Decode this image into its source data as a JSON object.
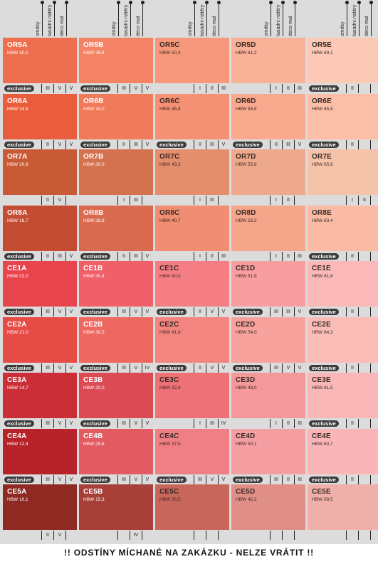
{
  "headers": [
    "omítky",
    "fasádní nátěry",
    "deco mal"
  ],
  "exclusive_label": "exclusive",
  "footer_text": "!! ODSTÍNY MÍCHANÉ NA ZAKÁZKU  - NELZE VRÁTIT !!",
  "rows": [
    {
      "cells": [
        {
          "code": "OR5A",
          "hbw": "HBW 30,1",
          "color": "#ee6f4f",
          "text_color": "#ffffff",
          "exclusive": true,
          "marks": [
            "III",
            "V",
            "V"
          ]
        },
        {
          "code": "OR5B",
          "hbw": "HBW 39,6",
          "color": "#f38364",
          "text_color": "#ffffff",
          "exclusive": true,
          "marks": [
            "III",
            "V",
            "V"
          ]
        },
        {
          "code": "OR5C",
          "hbw": "HBW 50,4",
          "color": "#f6987c",
          "text_color": "#3a2a24",
          "exclusive": false,
          "marks": [
            "I",
            "II",
            "III"
          ]
        },
        {
          "code": "OR5D",
          "hbw": "HBW 61,2",
          "color": "#f9b198",
          "text_color": "#3a2a24",
          "exclusive": false,
          "marks": [
            "I",
            "II",
            "III"
          ]
        },
        {
          "code": "OR5E",
          "hbw": "HBW 69,1",
          "color": "#fbc9b6",
          "text_color": "#3a2a24",
          "exclusive": true,
          "marks": [
            "II",
            "",
            ""
          ]
        }
      ]
    },
    {
      "cells": [
        {
          "code": "OR6A",
          "hbw": "HBW 24,5",
          "color": "#e95d3c",
          "text_color": "#ffffff",
          "exclusive": true,
          "marks": [
            "II",
            "V",
            "V"
          ]
        },
        {
          "code": "OR6B",
          "hbw": "HBW 34,0",
          "color": "#f07a5a",
          "text_color": "#ffffff",
          "exclusive": true,
          "marks": [
            "II",
            "III",
            "V"
          ]
        },
        {
          "code": "OR6C",
          "hbw": "HBW 45,8",
          "color": "#f49073",
          "text_color": "#3a2a24",
          "exclusive": true,
          "marks": [
            "II",
            "III",
            "V"
          ]
        },
        {
          "code": "OR6D",
          "hbw": "HBW 56,8",
          "color": "#f8a98e",
          "text_color": "#3a2a24",
          "exclusive": true,
          "marks": [
            "II",
            "III",
            "V"
          ]
        },
        {
          "code": "OR6E",
          "hbw": "HBW 65,8",
          "color": "#fbbfa8",
          "text_color": "#3a2a24",
          "exclusive": true,
          "marks": [
            "II",
            "",
            ""
          ]
        }
      ]
    },
    {
      "cells": [
        {
          "code": "OR7A",
          "hbw": "HBW 20,8",
          "color": "#c85a36",
          "text_color": "#ffffff",
          "exclusive": false,
          "marks": [
            "II",
            "V",
            ""
          ]
        },
        {
          "code": "OR7B",
          "hbw": "HBW 30,0",
          "color": "#d4714e",
          "text_color": "#ffffff",
          "exclusive": false,
          "marks": [
            "I",
            "III",
            ""
          ]
        },
        {
          "code": "OR7C",
          "hbw": "HBW 43,2",
          "color": "#e48e6e",
          "text_color": "#3a2a24",
          "exclusive": false,
          "marks": [
            "I",
            "III",
            ""
          ]
        },
        {
          "code": "OR7D",
          "hbw": "HBW 55,8",
          "color": "#eea98c",
          "text_color": "#3a2a24",
          "exclusive": false,
          "marks": [
            "I",
            "II",
            ""
          ]
        },
        {
          "code": "OR7E",
          "hbw": "HBW 65,6",
          "color": "#f5c2aa",
          "text_color": "#3a2a24",
          "exclusive": false,
          "marks": [
            "I",
            "II",
            ""
          ]
        }
      ]
    },
    {
      "cells": [
        {
          "code": "OR8A",
          "hbw": "HBW 18,7",
          "color": "#c44c32",
          "text_color": "#ffffff",
          "exclusive": true,
          "marks": [
            "II",
            "III",
            "V"
          ]
        },
        {
          "code": "OR8B",
          "hbw": "HBW 28,8",
          "color": "#d96a50",
          "text_color": "#ffffff",
          "exclusive": true,
          "marks": [
            "II",
            "III",
            "V"
          ]
        },
        {
          "code": "OR8C",
          "hbw": "HBW 40,7",
          "color": "#ef8e72",
          "text_color": "#3a2a24",
          "exclusive": false,
          "marks": [
            "I",
            "II",
            "III"
          ]
        },
        {
          "code": "OR8D",
          "hbw": "HBW 53,2",
          "color": "#f5a589",
          "text_color": "#3a2a24",
          "exclusive": false,
          "marks": [
            "I",
            "II",
            "III"
          ]
        },
        {
          "code": "OR8E",
          "hbw": "HBW 63,4",
          "color": "#f9bba3",
          "text_color": "#3a2a24",
          "exclusive": true,
          "marks": [
            "II",
            "",
            ""
          ]
        }
      ]
    },
    {
      "cells": [
        {
          "code": "CE1A",
          "hbw": "HBW 22,0",
          "color": "#e8444e",
          "text_color": "#ffffff",
          "exclusive": true,
          "marks": [
            "III",
            "V",
            "V"
          ]
        },
        {
          "code": "CE1B",
          "hbw": "HBW 30,4",
          "color": "#ef6068",
          "text_color": "#ffffff",
          "exclusive": true,
          "marks": [
            "III",
            "V",
            "V"
          ]
        },
        {
          "code": "CE1C",
          "hbw": "HBW 40,0",
          "color": "#f47e83",
          "text_color": "#3a2a24",
          "exclusive": true,
          "marks": [
            "II",
            "V",
            "V"
          ]
        },
        {
          "code": "CE1D",
          "hbw": "HBW 51,9",
          "color": "#f89da0",
          "text_color": "#3a2a24",
          "exclusive": true,
          "marks": [
            "III",
            "III",
            "V"
          ]
        },
        {
          "code": "CE1E",
          "hbw": "HBW 61,8",
          "color": "#fbb8b9",
          "text_color": "#3a2a24",
          "exclusive": true,
          "marks": [
            "II",
            "",
            ""
          ]
        }
      ]
    },
    {
      "cells": [
        {
          "code": "CE2A",
          "hbw": "HBW 21,0",
          "color": "#e64b45",
          "text_color": "#ffffff",
          "exclusive": true,
          "marks": [
            "III",
            "V",
            "V"
          ]
        },
        {
          "code": "CE2B",
          "hbw": "HBW 30,5",
          "color": "#ee6862",
          "text_color": "#ffffff",
          "exclusive": true,
          "marks": [
            "III",
            "V",
            "IV"
          ]
        },
        {
          "code": "CE2C",
          "hbw": "HBW 41,9",
          "color": "#f38580",
          "text_color": "#3a2a24",
          "exclusive": true,
          "marks": [
            "II",
            "V",
            "V"
          ]
        },
        {
          "code": "CE2D",
          "hbw": "HBW 54,0",
          "color": "#f7a29c",
          "text_color": "#3a2a24",
          "exclusive": true,
          "marks": [
            "III",
            "V",
            "V"
          ]
        },
        {
          "code": "CE2E",
          "hbw": "HBW 64,3",
          "color": "#fabcb6",
          "text_color": "#3a2a24",
          "exclusive": true,
          "marks": [
            "II",
            "",
            ""
          ]
        }
      ]
    },
    {
      "cells": [
        {
          "code": "CE3A",
          "hbw": "HBW 14,7",
          "color": "#cc2e38",
          "text_color": "#ffffff",
          "exclusive": true,
          "marks": [
            "III",
            "V",
            "V"
          ]
        },
        {
          "code": "CE3B",
          "hbw": "HBW 20,0",
          "color": "#dc4b54",
          "text_color": "#ffffff",
          "exclusive": true,
          "marks": [
            "III",
            "V",
            "V"
          ]
        },
        {
          "code": "CE3C",
          "hbw": "HBW 32,9",
          "color": "#ed7176",
          "text_color": "#3a2a24",
          "exclusive": false,
          "marks": [
            "I",
            "III",
            "IV"
          ]
        },
        {
          "code": "CE3D",
          "hbw": "HBW 48,0",
          "color": "#f4989b",
          "text_color": "#3a2a24",
          "exclusive": false,
          "marks": [
            "I",
            "II",
            "III"
          ]
        },
        {
          "code": "CE3E",
          "hbw": "HBW 61,5",
          "color": "#f9b7b8",
          "text_color": "#3a2a24",
          "exclusive": true,
          "marks": [
            "II",
            "",
            ""
          ]
        }
      ]
    },
    {
      "cells": [
        {
          "code": "CE4A",
          "hbw": "HBW 12,4",
          "color": "#b8222a",
          "text_color": "#ffffff",
          "exclusive": true,
          "marks": [
            "III",
            "V",
            "V"
          ]
        },
        {
          "code": "CE4B",
          "hbw": "HBW 25,6",
          "color": "#e35a62",
          "text_color": "#ffffff",
          "exclusive": true,
          "marks": [
            "III",
            "V",
            "V"
          ]
        },
        {
          "code": "CE4C",
          "hbw": "HBW 37,5",
          "color": "#ef7f84",
          "text_color": "#3a2a24",
          "exclusive": true,
          "marks": [
            "III",
            "V",
            "V"
          ]
        },
        {
          "code": "CE4D",
          "hbw": "HBW 50,1",
          "color": "#f59ea1",
          "text_color": "#3a2a24",
          "exclusive": true,
          "marks": [
            "III",
            "II",
            "III"
          ]
        },
        {
          "code": "CE4E",
          "hbw": "HBW 60,7",
          "color": "#f9b5b7",
          "text_color": "#3a2a24",
          "exclusive": true,
          "marks": [
            "II",
            "",
            ""
          ]
        }
      ]
    },
    {
      "cells": [
        {
          "code": "CE5A",
          "hbw": "HBW 10,1",
          "color": "#8e2a22",
          "text_color": "#ffffff",
          "exclusive": false,
          "marks": [
            "II",
            "V",
            ""
          ]
        },
        {
          "code": "CE5B",
          "hbw": "HBW 15,3",
          "color": "#a8403a",
          "text_color": "#ffffff",
          "exclusive": false,
          "marks": [
            "",
            "IV",
            ""
          ]
        },
        {
          "code": "CE5C",
          "hbw": "HBW 26,5",
          "color": "#c9665c",
          "text_color": "#3a2a24",
          "exclusive": false,
          "marks": [
            "",
            "",
            ""
          ]
        },
        {
          "code": "CE5D",
          "hbw": "HBW 42,2",
          "color": "#e08f86",
          "text_color": "#3a2a24",
          "exclusive": false,
          "marks": [
            "",
            "",
            ""
          ]
        },
        {
          "code": "CE5E",
          "hbw": "HBW 58,5",
          "color": "#eeb0a9",
          "text_color": "#3a2a24",
          "exclusive": false,
          "marks": [
            "",
            "",
            ""
          ]
        }
      ]
    }
  ]
}
